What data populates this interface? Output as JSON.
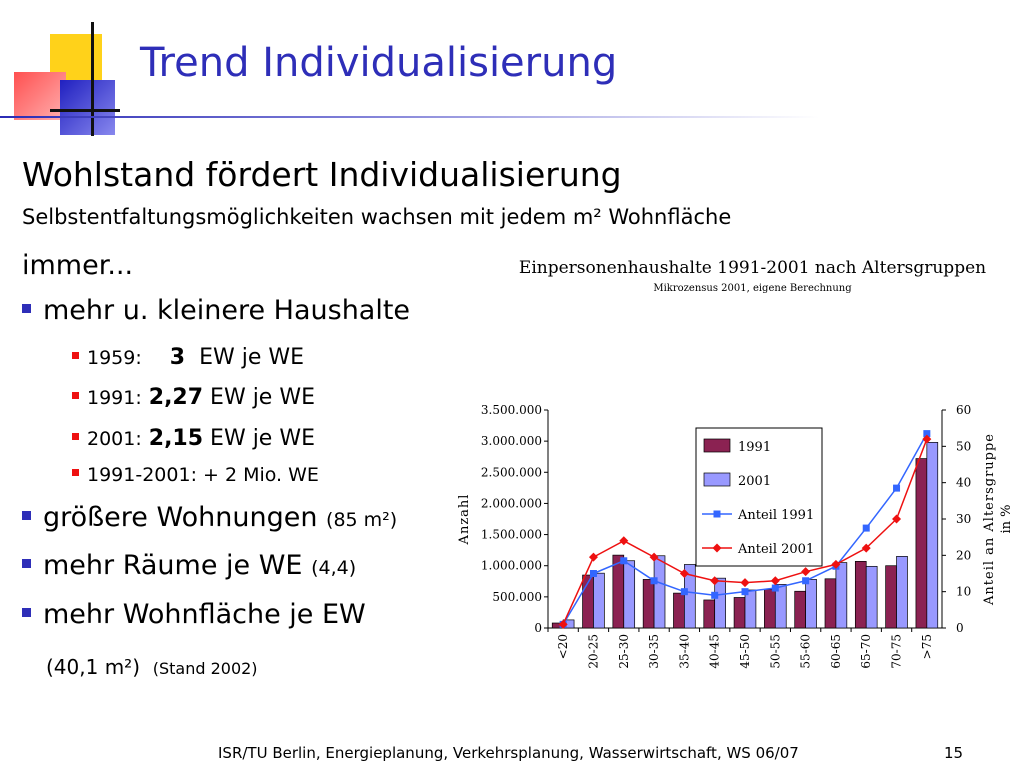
{
  "title": "Trend Individualisierung",
  "heading": "Wohlstand fördert Individualisierung",
  "sub1": "Selbstentfaltungsmöglichkeiten wachsen mit jedem m² Wohnfläche",
  "sub2": "immer...",
  "bullets": [
    {
      "text": "mehr u. kleinere Haushalte",
      "note": ""
    },
    {
      "text": "größere Wohnungen",
      "note": "(85 m²)"
    },
    {
      "text": "mehr Räume je WE",
      "note": "(4,4)"
    },
    {
      "text": "mehr Wohnfläche je EW",
      "note": ""
    }
  ],
  "subbullets": [
    {
      "year": "1959:",
      "value": "3",
      "unit": "EW je WE"
    },
    {
      "year": "1991:",
      "value": "2,27",
      "unit": "EW je WE"
    },
    {
      "year": "2001:",
      "value": "2,15",
      "unit": "EW je WE"
    },
    {
      "year": "1991-2001: + 2 Mio. WE",
      "value": "",
      "unit": ""
    }
  ],
  "area": {
    "value": "(40,1 m²)",
    "note": "(Stand 2002)"
  },
  "footer": "ISR/TU Berlin, Energieplanung, Verkehrsplanung, Wasserwirtschaft, WS 06/07",
  "page_number": "15",
  "colors": {
    "title": "#2e2eb8",
    "bar1991": "#8b2252",
    "bar2001": "#9999ff",
    "line1991": "#3366ff",
    "line2001": "#ee1111"
  },
  "chart_data": {
    "type": "bar",
    "title": "Einpersonenhaushalte 1991-2001 nach Altersgruppen",
    "subtitle": "Mikrozensus 2001, eigene Berechnung",
    "ylabel": "Anzahl",
    "y2label": "Anteil an Altersgruppe in %",
    "ylim": [
      0,
      3500000
    ],
    "y2lim": [
      0,
      60
    ],
    "yticks": [
      "0",
      "500.000",
      "1.000.000",
      "1.500.000",
      "2.000.000",
      "2.500.000",
      "3.000.000",
      "3.500.000"
    ],
    "y2ticks": [
      "0",
      "10",
      "20",
      "30",
      "40",
      "50",
      "60"
    ],
    "categories": [
      "<20",
      "20-25",
      "25-30",
      "30-35",
      "35-40",
      "40-45",
      "45-50",
      "50-55",
      "55-60",
      "60-65",
      "65-70",
      "70-75",
      ">75"
    ],
    "series": [
      {
        "name": "1991",
        "type": "bar",
        "axis": "left",
        "values": [
          80000,
          850000,
          1170000,
          780000,
          560000,
          450000,
          490000,
          620000,
          590000,
          790000,
          1070000,
          1000000,
          2720000
        ]
      },
      {
        "name": "2001",
        "type": "bar",
        "axis": "left",
        "values": [
          130000,
          880000,
          1080000,
          1160000,
          1020000,
          800000,
          610000,
          700000,
          780000,
          1050000,
          990000,
          1150000,
          2980000
        ]
      },
      {
        "name": "Anteil 1991",
        "type": "line",
        "axis": "right",
        "values": [
          1,
          15,
          18.5,
          13,
          10,
          9,
          10,
          11,
          13,
          17,
          27.5,
          38.5,
          53.5
        ]
      },
      {
        "name": "Anteil 2001",
        "type": "line",
        "axis": "right",
        "values": [
          1,
          19.5,
          24,
          19.5,
          15,
          13,
          12.5,
          13,
          15.5,
          17.5,
          22,
          30,
          52
        ]
      }
    ],
    "legend_position": "top-right",
    "grid": false
  }
}
